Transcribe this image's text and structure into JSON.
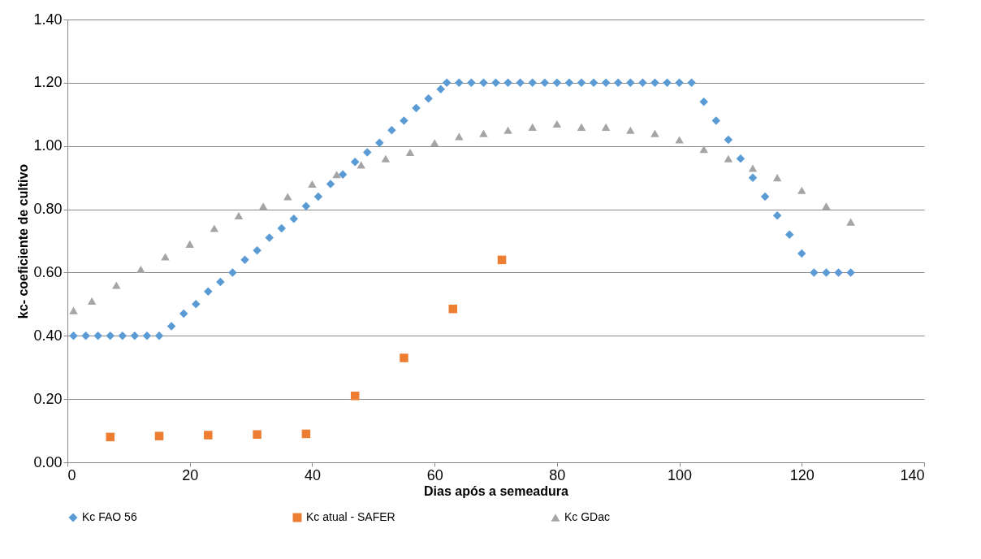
{
  "chart_data": {
    "type": "scatter",
    "xlabel": "Dias após a semeadura",
    "ylabel": "kc- coeficiente de cultivo",
    "xlim": [
      0,
      140
    ],
    "xticks": [
      0,
      20,
      40,
      60,
      80,
      100,
      120,
      140
    ],
    "ylim": [
      0,
      1.4
    ],
    "yticks": [
      {
        "value": 0,
        "label": "0.00"
      },
      {
        "value": 0.2,
        "label": "0.20"
      },
      {
        "value": 0.4,
        "label": "0.40"
      },
      {
        "value": 0.6,
        "label": "0.60"
      },
      {
        "value": 0.8,
        "label": "0.80"
      },
      {
        "value": 1.0,
        "label": "1.00"
      },
      {
        "value": 1.2,
        "label": "1.20"
      },
      {
        "value": 1.4,
        "label": "1.40"
      }
    ],
    "grid": "y",
    "legend": "bottom",
    "series": [
      {
        "name": "Kc FAO 56",
        "color": "#5b9bd5",
        "marker": "diamond",
        "x": [
          1,
          3,
          5,
          7,
          9,
          11,
          13,
          15,
          17,
          19,
          21,
          23,
          25,
          27,
          29,
          31,
          33,
          35,
          37,
          39,
          41,
          43,
          45,
          47,
          49,
          51,
          53,
          55,
          57,
          59,
          61,
          62,
          64,
          66,
          68,
          70,
          72,
          74,
          76,
          78,
          80,
          82,
          84,
          86,
          88,
          90,
          92,
          94,
          96,
          98,
          100,
          102,
          104,
          106,
          108,
          110,
          112,
          114,
          116,
          118,
          120,
          122,
          124,
          126,
          128
        ],
        "values": [
          0.4,
          0.4,
          0.4,
          0.4,
          0.4,
          0.4,
          0.4,
          0.4,
          0.43,
          0.47,
          0.5,
          0.54,
          0.57,
          0.6,
          0.64,
          0.67,
          0.71,
          0.74,
          0.77,
          0.81,
          0.84,
          0.88,
          0.91,
          0.95,
          0.98,
          1.01,
          1.05,
          1.08,
          1.12,
          1.15,
          1.18,
          1.2,
          1.2,
          1.2,
          1.2,
          1.2,
          1.2,
          1.2,
          1.2,
          1.2,
          1.2,
          1.2,
          1.2,
          1.2,
          1.2,
          1.2,
          1.2,
          1.2,
          1.2,
          1.2,
          1.2,
          1.2,
          1.14,
          1.08,
          1.02,
          0.96,
          0.9,
          0.84,
          0.78,
          0.72,
          0.66,
          0.6,
          0.6,
          0.6,
          0.6
        ]
      },
      {
        "name": "Kc atual - SAFER",
        "color": "#ed7d31",
        "marker": "square",
        "x": [
          7,
          15,
          23,
          31,
          39,
          47,
          55,
          63,
          71
        ],
        "values": [
          0.08,
          0.083,
          0.086,
          0.088,
          0.09,
          0.21,
          0.33,
          0.485,
          0.64
        ]
      },
      {
        "name": "Kc GDac",
        "color": "#a5a5a5",
        "marker": "triangle",
        "x": [
          1,
          4,
          8,
          12,
          16,
          20,
          24,
          28,
          32,
          36,
          40,
          44,
          48,
          52,
          56,
          60,
          64,
          68,
          72,
          76,
          80,
          84,
          88,
          92,
          96,
          100,
          104,
          108,
          112,
          116,
          120,
          124,
          128
        ],
        "values": [
          0.48,
          0.51,
          0.56,
          0.61,
          0.65,
          0.69,
          0.74,
          0.78,
          0.81,
          0.84,
          0.88,
          0.91,
          0.94,
          0.96,
          0.98,
          1.01,
          1.03,
          1.04,
          1.05,
          1.06,
          1.07,
          1.06,
          1.06,
          1.05,
          1.04,
          1.02,
          0.99,
          0.96,
          0.93,
          0.9,
          0.86,
          0.81,
          0.76
        ]
      }
    ]
  }
}
